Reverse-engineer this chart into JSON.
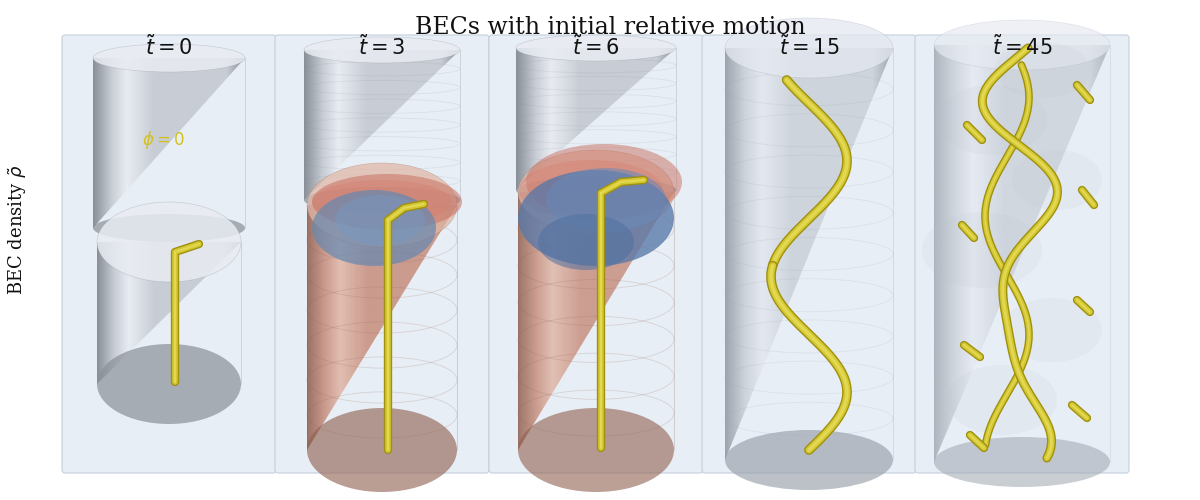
{
  "title": "BECs with initial relative motion",
  "title_fontsize": 17,
  "ylabel": "BEC density $\\tilde{\\rho}$",
  "ylabel_fontsize": 13,
  "panel_labels": [
    "$\\tilde{t}=0$",
    "$\\tilde{t}=3$",
    "$\\tilde{t}=6$",
    "$\\tilde{t}=15$",
    "$\\tilde{t}=45$"
  ],
  "panel_label_fontsize": 15,
  "background_color": "#ffffff",
  "panel_bg_color": "#e8eef5",
  "panel_border_color": "#c5d0dc",
  "vortex_color": "#d4c832",
  "vortex_color2": "#c8be2a",
  "red_color": "#c87868",
  "blue_color": "#7090b8"
}
